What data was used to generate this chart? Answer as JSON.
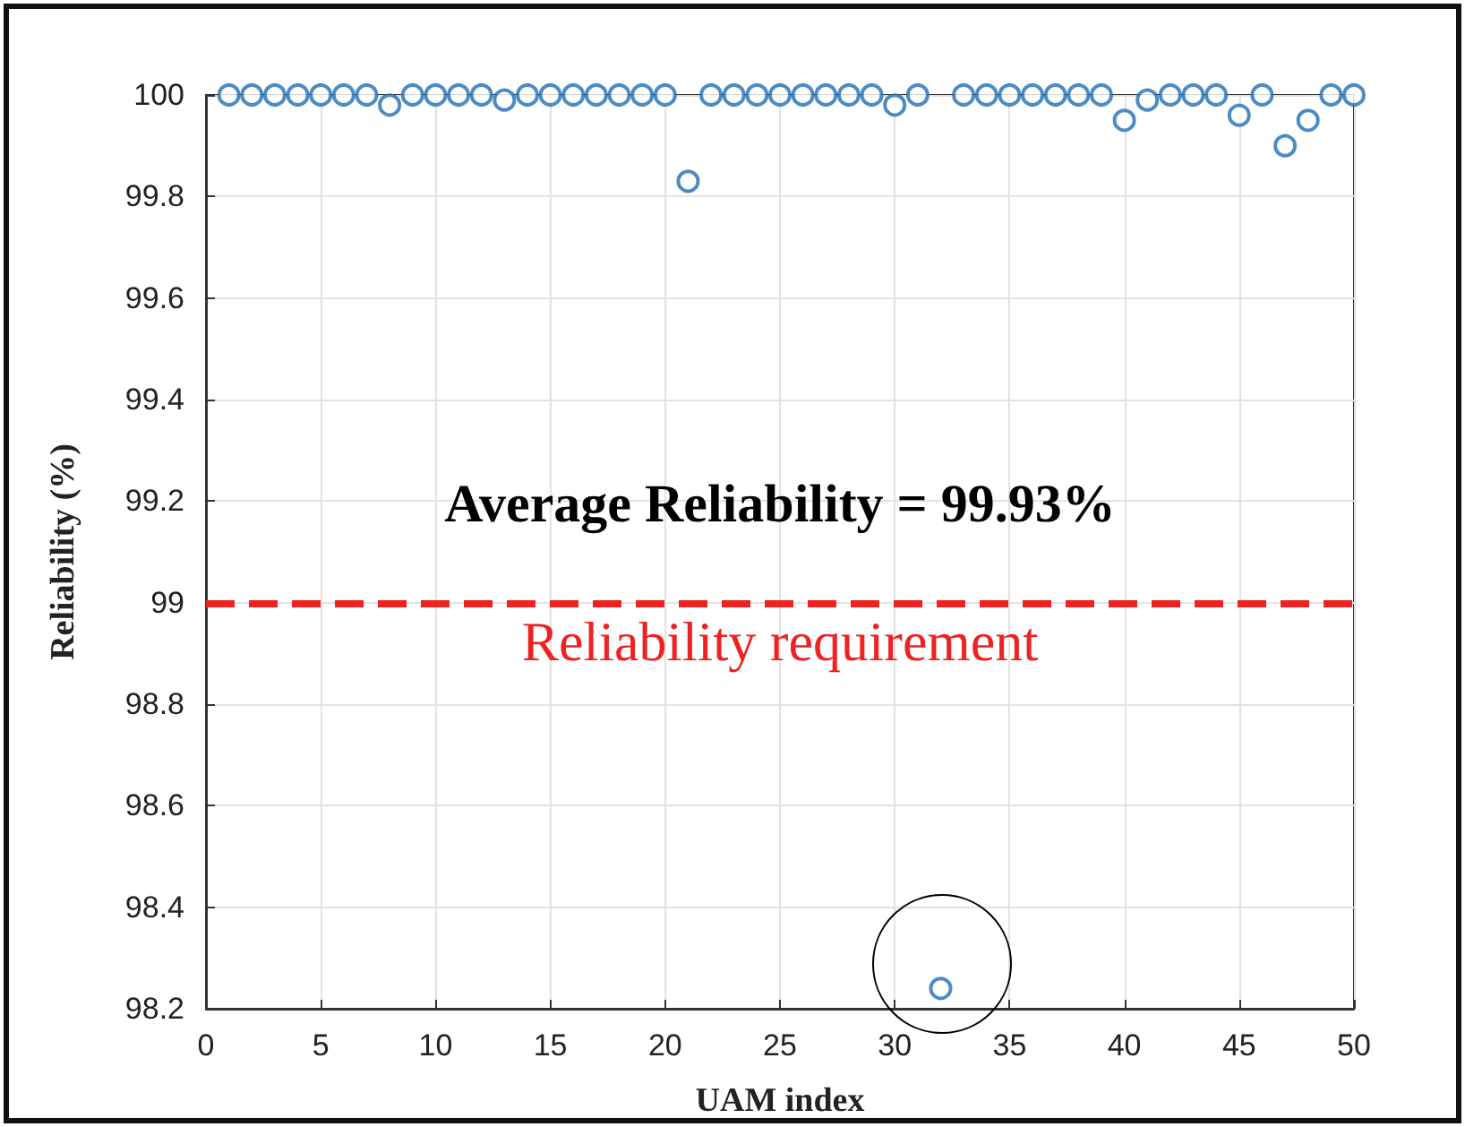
{
  "chart_data": {
    "type": "scatter",
    "xlabel": "UAM index",
    "ylabel": "Reliability (%)",
    "x": [
      1,
      2,
      3,
      4,
      5,
      6,
      7,
      8,
      9,
      10,
      11,
      12,
      13,
      14,
      15,
      16,
      17,
      18,
      19,
      20,
      21,
      22,
      23,
      24,
      25,
      26,
      27,
      28,
      29,
      30,
      31,
      32,
      33,
      34,
      35,
      36,
      37,
      38,
      39,
      40,
      41,
      42,
      43,
      44,
      45,
      46,
      47,
      48,
      49,
      50
    ],
    "series": [
      {
        "color": "#1f6fb4",
        "values": [
          100,
          100,
          100,
          100,
          100,
          100,
          100,
          99.98,
          100,
          100,
          100,
          100,
          99.99,
          100,
          100,
          100,
          100,
          100,
          100,
          100,
          99.83,
          100,
          100,
          100,
          100,
          100,
          100,
          100,
          100,
          99.98,
          100,
          98.24,
          100,
          100,
          100,
          100,
          100,
          100,
          100,
          99.95,
          99.99,
          100,
          100,
          100,
          99.96,
          100,
          99.9,
          99.95,
          100,
          100
        ]
      }
    ],
    "marker": "circle",
    "xlim": [
      0,
      50
    ],
    "xticks": [
      0,
      5,
      10,
      15,
      20,
      25,
      30,
      35,
      40,
      45,
      50
    ],
    "ylim": [
      98.2,
      100
    ],
    "yticks": [
      98.2,
      98.4,
      98.6,
      98.8,
      99,
      99.2,
      99.4,
      99.6,
      99.8,
      100
    ],
    "grid": true,
    "ref_lines": [
      {
        "axis": "y",
        "value": 99,
        "label": "Reliability requirement",
        "color": "#ee2222",
        "line_style": "dashed"
      }
    ],
    "annotations": [
      "Average Reliability = 99.93%"
    ]
  }
}
